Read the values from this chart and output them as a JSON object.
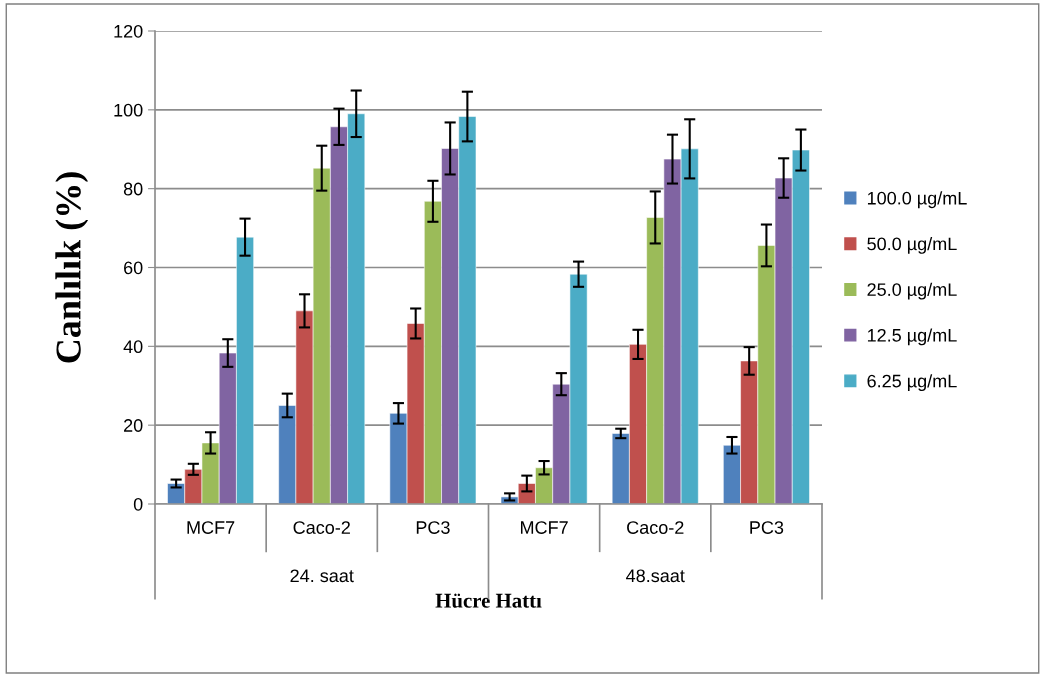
{
  "chart_data": {
    "type": "bar",
    "xlabel": "Hücre Hattı",
    "ylabel": "Canlılık (%)",
    "categories": [
      "MCF7",
      "Caco-2",
      "PC3",
      "MCF7",
      "Caco-2",
      "PC3"
    ],
    "annotations": [
      "24. saat",
      "48.saat"
    ],
    "ylim": [
      0,
      120
    ],
    "yticks": [
      0,
      20,
      40,
      60,
      80,
      100,
      120
    ],
    "grid": "y",
    "legend": "right",
    "series": [
      {
        "name": "100.0 µg/mL",
        "color": "#4f81bd",
        "values": [
          5.2,
          25,
          23,
          1.8,
          17.9,
          14.9
        ],
        "errors": [
          1,
          3,
          2.6,
          0.9,
          1.2,
          2.1
        ]
      },
      {
        "name": "50.0 µg/mL",
        "color": "#c0504d",
        "values": [
          8.8,
          49,
          45.8,
          5.2,
          40.5,
          36.3
        ],
        "errors": [
          1.4,
          4.2,
          3.8,
          2,
          3.7,
          3.5
        ]
      },
      {
        "name": "25.0 µg/mL",
        "color": "#9bbb59",
        "values": [
          15.5,
          85.2,
          76.8,
          9.2,
          72.7,
          65.6
        ],
        "errors": [
          2.7,
          5.7,
          5.2,
          1.7,
          6.6,
          5.3
        ]
      },
      {
        "name": "12.5 µg/mL",
        "color": "#8064a2",
        "values": [
          38.3,
          95.7,
          90.2,
          30.4,
          87.5,
          82.7
        ],
        "errors": [
          3.5,
          4.6,
          6.6,
          2.8,
          6.2,
          5
        ]
      },
      {
        "name": "6.25 µg/mL",
        "color": "#4bacc6",
        "values": [
          67.7,
          99,
          98.3,
          58.3,
          90.1,
          89.8
        ],
        "errors": [
          4.7,
          5.9,
          6.3,
          3.2,
          7.5,
          5.2
        ]
      }
    ]
  }
}
